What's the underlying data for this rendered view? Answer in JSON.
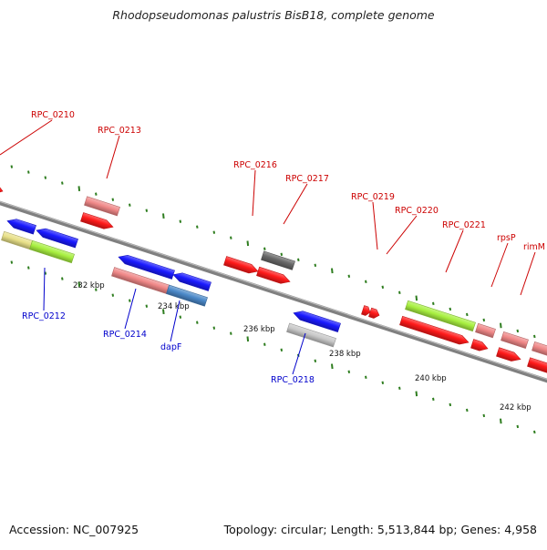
{
  "header": {
    "title": "Rhodopseudomonas palustris BisB18, complete genome"
  },
  "footer": {
    "accession": "Accession: NC_007925",
    "topology": "Topology: circular; Length: 5,513,844 bp; Genes: 4,958"
  },
  "colors": {
    "backbone": "#808080",
    "tick_dots": "#2e7d1f",
    "label_top": "#cc0000",
    "label_bottom": "#0000cc",
    "scale_text": "#111111"
  },
  "scale": {
    "unit": "kbp",
    "labels": [
      "232 kbp",
      "234 kbp",
      "236 kbp",
      "238 kbp",
      "240 kbp",
      "242 kbp"
    ]
  },
  "genes": [
    {
      "id": "RPC_0210",
      "label": "RPC_0210",
      "strand": "plus",
      "color": "#ff1a1a"
    },
    {
      "id": "g_a",
      "label": "",
      "strand": "plus",
      "color": "#f08888"
    },
    {
      "id": "RPC_0213",
      "label": "RPC_0213",
      "strand": "plus",
      "color": "#ff1a1a"
    },
    {
      "id": "RPC_0212",
      "label": "RPC_0212",
      "strand": "minus",
      "color": "#1a1aff"
    },
    {
      "id": "g_b",
      "label": "",
      "strand": "minus",
      "color": "#1a1aff"
    },
    {
      "id": "g_c",
      "label": "",
      "strand": "minus",
      "color": "#e8e088"
    },
    {
      "id": "g_d",
      "label": "",
      "strand": "minus",
      "color": "#a8f040"
    },
    {
      "id": "g_e",
      "label": "",
      "strand": "minus",
      "color": "#1a1aff"
    },
    {
      "id": "RPC_0214",
      "label": "RPC_0214",
      "strand": "minus",
      "color": "#f08888"
    },
    {
      "id": "g_f",
      "label": "",
      "strand": "minus",
      "color": "#1a1aff"
    },
    {
      "id": "dapF",
      "label": "dapF",
      "strand": "minus",
      "color": "#4a88c8"
    },
    {
      "id": "RPC_0216",
      "label": "RPC_0216",
      "strand": "plus",
      "color": "#ff1a1a"
    },
    {
      "id": "RPC_0217",
      "label": "RPC_0217",
      "strand": "plus",
      "color": "#686868"
    },
    {
      "id": "g_g",
      "label": "",
      "strand": "plus",
      "color": "#ff1a1a"
    },
    {
      "id": "g_h",
      "label": "",
      "strand": "minus",
      "color": "#1a1aff"
    },
    {
      "id": "RPC_0218",
      "label": "RPC_0218",
      "strand": "minus",
      "color": "#c8c8c8"
    },
    {
      "id": "RPC_0219",
      "label": "RPC_0219",
      "strand": "plus",
      "color": "#ff1a1a"
    },
    {
      "id": "RPC_0220",
      "label": "RPC_0220",
      "strand": "plus",
      "color": "#ff1a1a"
    },
    {
      "id": "RPC_0221",
      "label": "RPC_0221",
      "strand": "plus",
      "color": "#a8f040"
    },
    {
      "id": "g_i",
      "label": "",
      "strand": "plus",
      "color": "#ff1a1a"
    },
    {
      "id": "g_j",
      "label": "",
      "strand": "plus",
      "color": "#ff1a1a"
    },
    {
      "id": "rpsP",
      "label": "rpsP",
      "strand": "plus",
      "color": "#f08888"
    },
    {
      "id": "g_k",
      "label": "",
      "strand": "plus",
      "color": "#f08888"
    },
    {
      "id": "g_l",
      "label": "",
      "strand": "plus",
      "color": "#ff1a1a"
    },
    {
      "id": "rimM",
      "label": "rimM",
      "strand": "plus",
      "color": "#f08888"
    },
    {
      "id": "g_m",
      "label": "",
      "strand": "plus",
      "color": "#ff1a1a"
    }
  ]
}
